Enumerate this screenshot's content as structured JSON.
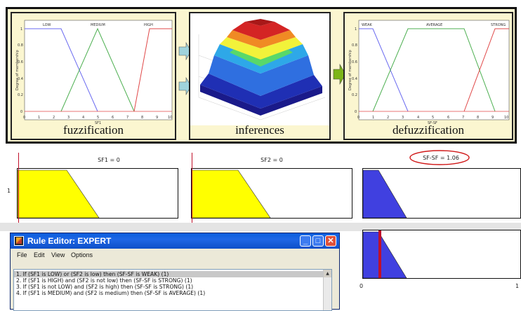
{
  "top_figure": {
    "fuzzification": {
      "caption": "fuzzification",
      "mf_labels": [
        "LOW",
        "MEDIUM",
        "HIGH"
      ],
      "x_axis_label": "SF1",
      "y_axis_label": "Degree of membership",
      "x_ticks": [
        "0",
        "1",
        "2",
        "3",
        "4",
        "5",
        "6",
        "7",
        "8",
        "9",
        "10"
      ],
      "y_ticks": [
        "0",
        "0.2",
        "0.4",
        "0.6",
        "0.8",
        "1"
      ]
    },
    "inferences": {
      "caption": "inferences"
    },
    "defuzzification": {
      "caption": "defuzzification",
      "mf_labels": [
        "WEAK",
        "AVERAGE",
        "STRONG"
      ],
      "x_axis_label": "SF-SF",
      "y_axis_label": "Degree of membership",
      "x_ticks": [
        "0",
        "1",
        "2",
        "3",
        "4",
        "5",
        "6",
        "7",
        "8",
        "9",
        "10"
      ],
      "y_ticks": [
        "0",
        "0.2",
        "0.4",
        "0.6",
        "0.8",
        "1"
      ]
    },
    "colors": {
      "panel_bg": "#fbf6d0",
      "arrow_cyan": "#9fd3dc",
      "arrow_green": "#7cb518",
      "mf_blue": "#6a6af0",
      "mf_green": "#4caf50",
      "mf_red": "#e04848"
    }
  },
  "rule_viewer": {
    "input1_title": "SF1 = 0",
    "input2_title": "SF2 = 0",
    "output_title": "SF-SF = 1.06",
    "row_label": "1",
    "output_axis_min": "0",
    "output_axis_max": "1",
    "colors": {
      "input_fill": "#ffff00",
      "output_fill": "#4040e0",
      "marker": "#c0102a"
    }
  },
  "rule_editor": {
    "title": "Rule Editor: EXPERT",
    "menu": [
      "File",
      "Edit",
      "View",
      "Options"
    ],
    "rules": [
      "1. If (SF1 is LOW) or (SF2 is low) then (SF-SF is WEAK) (1)",
      "2. If (SF1 is HIGH) and (SF2 is not low) then (SF-SF is STRONG) (1)",
      "3. If (SF1 is not LOW) and (SF2 is high) then (SF-SF is STRONG) (1)",
      "4. If (SF1 is MEDIUM) and (SF2 is medium) then (SF-SF is AVERAGE) (1)"
    ],
    "selected_rule_index": 0,
    "window_buttons": {
      "minimize": "_",
      "maximize": "□",
      "close": "✕"
    }
  }
}
